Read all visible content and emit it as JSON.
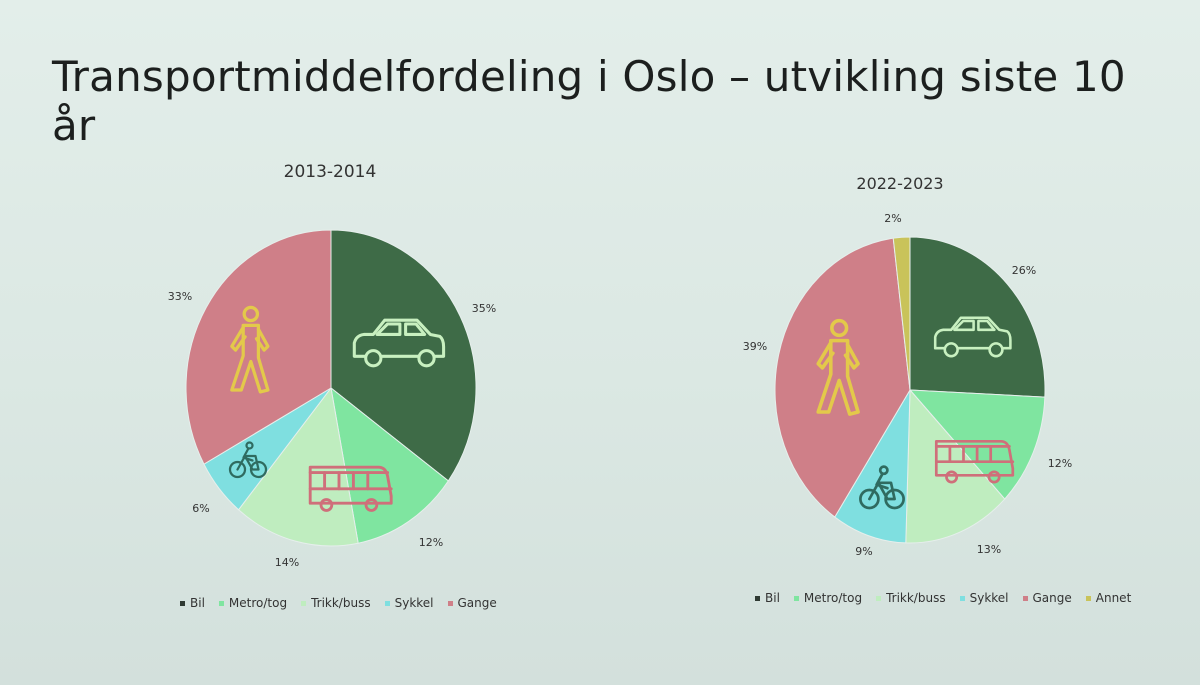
{
  "slide": {
    "title": "Transportmiddelfordeling i Oslo – utvikling siste 10 år"
  },
  "colors": {
    "Bil": "#3e6b47",
    "Metro/tog": "#7fe5a0",
    "Trikk/buss": "#bfedbf",
    "Sykkel": "#7fdfe0",
    "Gange": "#cf7f88",
    "Annet": "#c9c35a",
    "icon_car": "#c8f0c0",
    "icon_walk": "#e3c94a",
    "icon_bus": "#cf6f7a",
    "icon_bike": "#2f6b60"
  },
  "chart_data": [
    {
      "type": "pie",
      "title": "2013-2014",
      "categories": [
        "Bil",
        "Metro/tog",
        "Trikk/buss",
        "Sykkel",
        "Gange"
      ],
      "values": [
        35,
        12,
        14,
        6,
        33
      ],
      "labels": [
        "35%",
        "12%",
        "14%",
        "6%",
        "33%"
      ],
      "legend": "bottom",
      "start": "top, clockwise"
    },
    {
      "type": "pie",
      "title": "2022-2023",
      "categories": [
        "Bil",
        "Metro/tog",
        "Trikk/buss",
        "Sykkel",
        "Gange",
        "Annet"
      ],
      "values": [
        26,
        12,
        13,
        9,
        39,
        2
      ],
      "labels": [
        "26%",
        "12%",
        "13%",
        "9%",
        "39%",
        "2%"
      ],
      "legend": "bottom",
      "start": "top, clockwise"
    }
  ],
  "icons": [
    "car-icon",
    "walking-person-icon",
    "bus-icon",
    "bicycle-icon"
  ]
}
